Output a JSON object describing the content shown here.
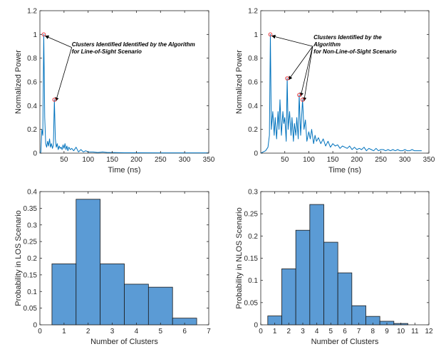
{
  "colors": {
    "line": "#0072BD",
    "bar_fill": "#5B9BD5",
    "bar_edge": "#1a1a1a",
    "marker": "#E8383D",
    "axis": "#262626"
  },
  "chart_data": [
    {
      "type": "line",
      "xlabel": "Time (ns)",
      "ylabel": "Normalized Power",
      "xlim": [
        0,
        350
      ],
      "ylim": [
        0,
        1.2
      ],
      "xticks": [
        50,
        100,
        150,
        200,
        250,
        300,
        350
      ],
      "yticks": [
        0,
        0.2,
        0.4,
        0.6,
        0.8,
        1,
        1.2
      ],
      "xtick_labels": [
        "50",
        "100",
        "150",
        "200",
        "250",
        "300",
        "350"
      ],
      "ytick_labels": [
        "0",
        "0.2",
        "0.4",
        "0.6",
        "0.8",
        "1",
        "1.2"
      ],
      "grid": false,
      "series": [
        {
          "x": [
            0,
            2,
            4,
            6,
            8,
            10,
            12,
            14,
            16,
            18,
            20,
            22,
            24,
            26,
            28,
            30,
            32,
            34,
            36,
            38,
            40,
            42,
            44,
            46,
            48,
            50,
            52,
            54,
            56,
            58,
            60,
            63,
            66,
            70,
            75,
            80,
            85,
            90,
            95,
            100,
            110,
            120,
            130,
            140,
            150,
            175,
            200,
            250,
            300,
            350
          ],
          "y": [
            0,
            0.01,
            0.2,
            0.15,
            1.0,
            0.3,
            0.08,
            0.05,
            0.1,
            0.06,
            0.12,
            0.05,
            0.08,
            0.04,
            0.07,
            0.45,
            0.12,
            0.05,
            0.08,
            0.03,
            0.06,
            0.04,
            0.05,
            0.03,
            0.07,
            0.04,
            0.08,
            0.03,
            0.06,
            0.02,
            0.05,
            0.03,
            0.04,
            0.02,
            0.05,
            0.01,
            0.03,
            0.01,
            0.02,
            0.01,
            0.01,
            0.005,
            0.01,
            0.005,
            0.005,
            0.003,
            0.003,
            0.002,
            0.002,
            0.002
          ]
        }
      ],
      "markers": [
        {
          "x": 8,
          "y": 1.0
        },
        {
          "x": 30,
          "y": 0.45
        }
      ],
      "annotation": {
        "lines": [
          "Clusters Identified Identified by the Algorithm",
          "for Line-of-Sight Scenario"
        ],
        "text_anchor": {
          "x": 66,
          "y": 0.9
        },
        "arrow_start": {
          "x": 66,
          "y": 0.89
        },
        "arrow_targets": [
          {
            "x": 8,
            "y": 1.0
          },
          {
            "x": 30,
            "y": 0.45
          }
        ]
      }
    },
    {
      "type": "line",
      "xlabel": "Time (ns)",
      "ylabel": "Normalized Power",
      "xlim": [
        0,
        350
      ],
      "ylim": [
        0,
        1.2
      ],
      "xticks": [
        50,
        100,
        150,
        200,
        250,
        300,
        350
      ],
      "yticks": [
        0,
        0.2,
        0.4,
        0.6,
        0.8,
        1,
        1.2
      ],
      "xtick_labels": [
        "50",
        "100",
        "150",
        "200",
        "250",
        "300",
        "350"
      ],
      "ytick_labels": [
        "0",
        "0.2",
        "0.4",
        "0.6",
        "0.8",
        "1",
        "1.2"
      ],
      "grid": false,
      "series": [
        {
          "x": [
            0,
            5,
            10,
            15,
            18,
            20,
            22,
            25,
            28,
            30,
            33,
            36,
            38,
            40,
            43,
            46,
            48,
            50,
            53,
            55,
            57,
            60,
            63,
            65,
            68,
            70,
            73,
            75,
            78,
            80,
            83,
            85,
            87,
            90,
            93,
            96,
            100,
            103,
            106,
            110,
            113,
            116,
            120,
            125,
            130,
            135,
            140,
            145,
            150,
            155,
            160,
            165,
            170,
            175,
            180,
            185,
            190,
            195,
            200,
            205,
            210,
            215,
            220,
            225,
            230,
            235,
            240,
            245,
            250,
            255,
            260,
            265,
            270,
            275,
            280,
            285,
            290,
            295,
            300,
            305,
            310,
            315,
            320,
            325,
            330,
            335
          ],
          "y": [
            0,
            0.01,
            0.02,
            0.05,
            0.15,
            1.0,
            0.2,
            0.35,
            0.15,
            0.3,
            0.12,
            0.35,
            0.2,
            0.45,
            0.15,
            0.35,
            0.25,
            0.3,
            0.1,
            0.63,
            0.2,
            0.35,
            0.15,
            0.3,
            0.1,
            0.25,
            0.15,
            0.3,
            0.12,
            0.49,
            0.15,
            0.3,
            0.45,
            0.2,
            0.28,
            0.1,
            0.18,
            0.12,
            0.2,
            0.08,
            0.15,
            0.1,
            0.13,
            0.08,
            0.12,
            0.06,
            0.1,
            0.05,
            0.08,
            0.06,
            0.07,
            0.04,
            0.06,
            0.05,
            0.04,
            0.06,
            0.03,
            0.05,
            0.03,
            0.04,
            0.03,
            0.05,
            0.02,
            0.04,
            0.03,
            0.02,
            0.04,
            0.02,
            0.03,
            0.03,
            0.02,
            0.03,
            0.02,
            0.03,
            0.02,
            0.03,
            0.02,
            0.02,
            0.03,
            0.02,
            0.02,
            0.03,
            0.02,
            0.02,
            0.02,
            0.02
          ]
        }
      ],
      "markers": [
        {
          "x": 20,
          "y": 1.0
        },
        {
          "x": 55,
          "y": 0.63
        },
        {
          "x": 80,
          "y": 0.49
        },
        {
          "x": 87,
          "y": 0.45
        }
      ],
      "annotation": {
        "lines": [
          "Clusters Identified by the",
          "Algorithm",
          "for Non-Line-of-Sight Scenario"
        ],
        "text_anchor": {
          "x": 110,
          "y": 0.96
        },
        "arrow_start": {
          "x": 108,
          "y": 0.9
        },
        "arrow_targets": [
          {
            "x": 20,
            "y": 1.0
          },
          {
            "x": 55,
            "y": 0.63
          },
          {
            "x": 80,
            "y": 0.49
          },
          {
            "x": 87,
            "y": 0.45
          }
        ]
      }
    },
    {
      "type": "bar",
      "xlabel": "Number of Clusters",
      "ylabel": "Probability in LOS Scenario",
      "xlim": [
        0,
        7
      ],
      "ylim": [
        0,
        0.4
      ],
      "xticks": [
        0,
        1,
        2,
        3,
        4,
        5,
        6,
        7
      ],
      "yticks": [
        0,
        0.05,
        0.1,
        0.15,
        0.2,
        0.25,
        0.3,
        0.35,
        0.4
      ],
      "xtick_labels": [
        "0",
        "1",
        "2",
        "3",
        "4",
        "5",
        "6",
        "7"
      ],
      "ytick_labels": [
        "0",
        "0.05",
        "0.1",
        "0.15",
        "0.2",
        "0.25",
        "0.3",
        "0.35",
        "0.4"
      ],
      "grid": false,
      "categories": [
        1,
        2,
        3,
        4,
        5,
        6
      ],
      "values": [
        0.183,
        0.377,
        0.183,
        0.122,
        0.113,
        0.02
      ],
      "bar_width": 1
    },
    {
      "type": "bar",
      "xlabel": "Number of Clusters",
      "ylabel": "Probability in NLOS Scenario",
      "xlim": [
        0,
        12
      ],
      "ylim": [
        0,
        0.3
      ],
      "xticks": [
        0,
        1,
        2,
        3,
        4,
        5,
        6,
        7,
        8,
        9,
        10,
        11,
        12
      ],
      "yticks": [
        0,
        0.05,
        0.1,
        0.15,
        0.2,
        0.25,
        0.3
      ],
      "xtick_labels": [
        "0",
        "1",
        "2",
        "3",
        "4",
        "5",
        "6",
        "7",
        "8",
        "9",
        "10",
        "11",
        "12"
      ],
      "ytick_labels": [
        "0",
        "0.05",
        "0.1",
        "0.15",
        "0.2",
        "0.25",
        "0.3"
      ],
      "grid": false,
      "categories": [
        1,
        2,
        3,
        4,
        5,
        6,
        7,
        8,
        9,
        10
      ],
      "values": [
        0.02,
        0.126,
        0.213,
        0.271,
        0.186,
        0.117,
        0.043,
        0.019,
        0.008,
        0.003
      ],
      "bar_width": 1
    }
  ]
}
